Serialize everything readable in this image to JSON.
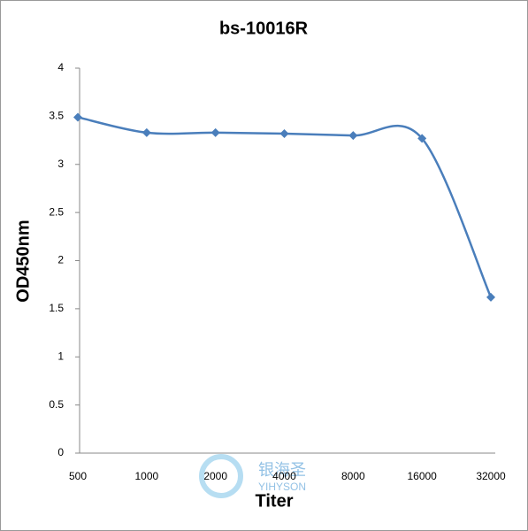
{
  "chart_data": {
    "type": "line",
    "title": "bs-10016R",
    "x_label": "Titer",
    "y_label": "OD450nm",
    "categories": [
      "500",
      "1000",
      "2000",
      "4000",
      "8000",
      "16000",
      "32000"
    ],
    "series": [
      {
        "name": "bs-10016R",
        "color": "#4a7ebb",
        "values": [
          3.49,
          3.33,
          3.33,
          3.32,
          3.3,
          3.27,
          1.62
        ]
      }
    ],
    "ylim": [
      0,
      4
    ],
    "yticks": [
      0,
      0.5,
      1,
      1.5,
      2,
      2.5,
      3,
      3.5,
      4
    ],
    "grid": false,
    "smooth": true,
    "watermark": {
      "name": "银海圣",
      "sub": "YIHYSON"
    }
  }
}
